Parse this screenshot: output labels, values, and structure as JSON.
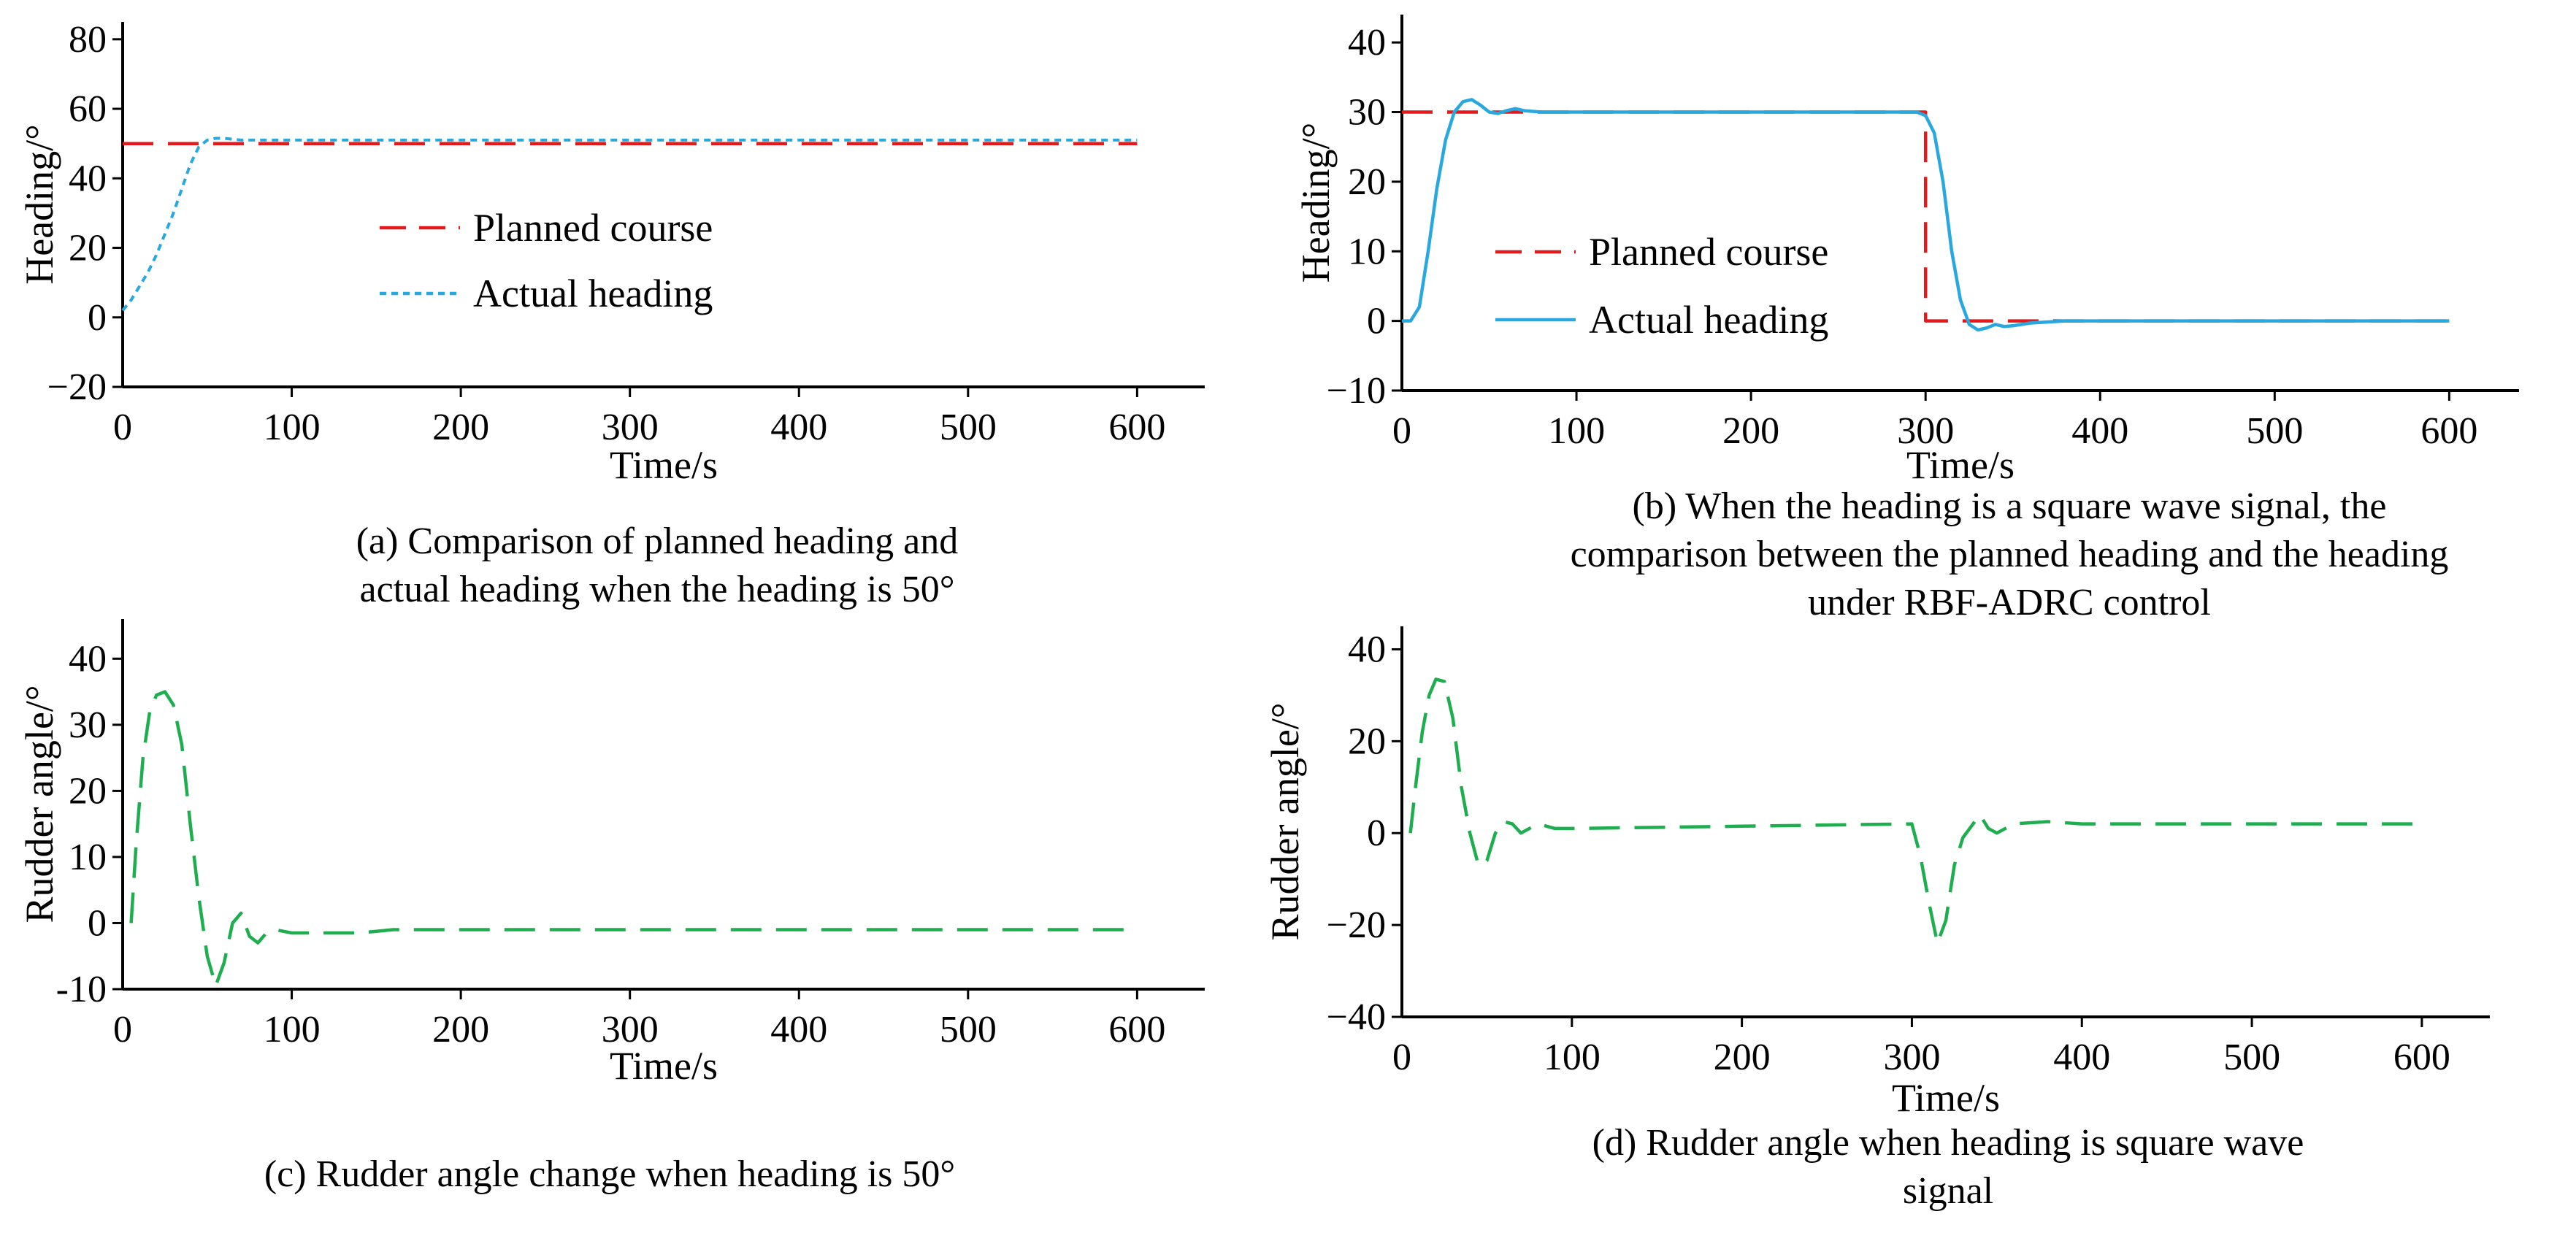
{
  "figure": {
    "panels": [
      {
        "caption_lines": [
          "(a) Comparison of planned heading and",
          "actual heading when the heading is 50°"
        ]
      },
      {
        "caption_lines": [
          "(b) When the heading is a square wave signal, the",
          "comparison between the planned heading and the heading",
          "under RBF-ADRC control"
        ]
      },
      {
        "caption_lines": [
          "(c) Rudder angle change when heading is 50°"
        ]
      },
      {
        "caption_lines": [
          "(d) Rudder angle when heading is square wave",
          "signal"
        ]
      }
    ]
  },
  "colors": {
    "planned": "#e31a1c",
    "actual": "#29a8e0",
    "rudder": "#1fae4f",
    "axis": "#000000"
  },
  "chart_data": [
    {
      "id": "a",
      "type": "line",
      "title": "",
      "xlabel": "Time/s",
      "ylabel": "Heading/°",
      "xlim": [
        0,
        640
      ],
      "ylim": [
        -20,
        85
      ],
      "xticks": [
        0,
        100,
        200,
        300,
        400,
        500,
        600
      ],
      "xtick_labels": [
        "0",
        "100",
        "200",
        "300",
        "400",
        "500",
        "600"
      ],
      "yticks": [
        -20,
        0,
        20,
        40,
        60,
        80
      ],
      "ytick_labels": [
        "−20",
        "0",
        "20",
        "40",
        "60",
        "80"
      ],
      "legend": {
        "position": "center",
        "entries": [
          "Planned course",
          "Actual heading"
        ]
      },
      "series": [
        {
          "name": "Planned course",
          "style": "dashed",
          "color_key": "planned",
          "x": [
            0,
            600
          ],
          "y": [
            50,
            50
          ]
        },
        {
          "name": "Actual heading",
          "style": "dotted",
          "color_key": "actual",
          "x": [
            0,
            5,
            10,
            15,
            20,
            25,
            30,
            35,
            40,
            45,
            50,
            55,
            60,
            70,
            80,
            100,
            200,
            300,
            400,
            500,
            600
          ],
          "y": [
            2,
            5,
            9,
            13,
            18,
            24,
            30,
            37,
            44,
            49,
            51,
            51.5,
            51.5,
            51,
            51,
            51,
            51,
            51,
            51,
            51,
            51
          ]
        }
      ]
    },
    {
      "id": "b",
      "type": "line",
      "title": "",
      "xlabel": "Time/s",
      "ylabel": "Heading/°",
      "xlim": [
        0,
        640
      ],
      "ylim": [
        -10,
        44
      ],
      "xticks": [
        0,
        100,
        200,
        300,
        400,
        500,
        600
      ],
      "xtick_labels": [
        "0",
        "100",
        "200",
        "300",
        "400",
        "500",
        "600"
      ],
      "yticks": [
        -10,
        0,
        10,
        20,
        30,
        40
      ],
      "ytick_labels": [
        "−10",
        "0",
        "10",
        "20",
        "30",
        "40"
      ],
      "legend": {
        "position": "lower-left",
        "entries": [
          "Planned course",
          "Actual heading"
        ]
      },
      "series": [
        {
          "name": "Planned course",
          "style": "dashed",
          "color_key": "planned",
          "x": [
            0,
            300,
            300,
            600
          ],
          "y": [
            30,
            30,
            0,
            0
          ]
        },
        {
          "name": "Actual heading",
          "style": "solid",
          "color_key": "actual",
          "x": [
            0,
            5,
            10,
            15,
            20,
            25,
            30,
            35,
            40,
            45,
            50,
            55,
            60,
            65,
            70,
            80,
            100,
            200,
            295,
            300,
            305,
            310,
            315,
            320,
            325,
            330,
            335,
            340,
            345,
            350,
            360,
            380,
            400,
            500,
            600
          ],
          "y": [
            0,
            0,
            2,
            10,
            19,
            26,
            30,
            31.5,
            31.8,
            31,
            30,
            29.8,
            30.2,
            30.5,
            30.2,
            30,
            30,
            30,
            30,
            29.5,
            27,
            20,
            10,
            3,
            -0.5,
            -1.3,
            -1,
            -0.5,
            -0.8,
            -0.7,
            -0.3,
            0,
            0,
            0,
            0
          ]
        }
      ]
    },
    {
      "id": "c",
      "type": "line",
      "title": "",
      "xlabel": "Time/s",
      "ylabel": "Rudder angle/°",
      "xlim": [
        0,
        640
      ],
      "ylim": [
        -10,
        46
      ],
      "xticks": [
        0,
        100,
        200,
        300,
        400,
        500,
        600
      ],
      "xtick_labels": [
        "0",
        "100",
        "200",
        "300",
        "400",
        "500",
        "600"
      ],
      "yticks": [
        -10,
        0,
        10,
        20,
        30,
        40
      ],
      "ytick_labels": [
        "-10",
        "0",
        "10",
        "20",
        "30",
        "40"
      ],
      "series": [
        {
          "name": "Rudder angle",
          "style": "dashed",
          "color_key": "rudder",
          "x": [
            5,
            8,
            12,
            16,
            20,
            25,
            30,
            35,
            40,
            45,
            50,
            55,
            60,
            65,
            70,
            75,
            80,
            85,
            90,
            100,
            120,
            140,
            160,
            200,
            300,
            400,
            500,
            600
          ],
          "y": [
            0,
            12,
            25,
            32,
            34.5,
            35,
            33,
            27,
            15,
            4,
            -5,
            -9.5,
            -6,
            0,
            1.5,
            -2,
            -3,
            -1.5,
            -1,
            -1.5,
            -1.5,
            -1.5,
            -1,
            -1,
            -1,
            -1,
            -1,
            -1
          ]
        }
      ]
    },
    {
      "id": "d",
      "type": "line",
      "title": "",
      "xlabel": "Time/s",
      "ylabel": "Rudder angle/°",
      "xlim": [
        0,
        640
      ],
      "ylim": [
        -40,
        45
      ],
      "xticks": [
        0,
        100,
        200,
        300,
        400,
        500,
        600
      ],
      "xtick_labels": [
        "0",
        "100",
        "200",
        "300",
        "400",
        "500",
        "600"
      ],
      "yticks": [
        -40,
        -20,
        0,
        20,
        40
      ],
      "ytick_labels": [
        "−40",
        "−20",
        "0",
        "20",
        "40"
      ],
      "series": [
        {
          "name": "Rudder angle",
          "style": "dashed",
          "color_key": "rudder",
          "x": [
            5,
            8,
            12,
            16,
            20,
            25,
            30,
            35,
            40,
            45,
            50,
            55,
            60,
            65,
            70,
            80,
            90,
            100,
            200,
            300,
            305,
            310,
            315,
            320,
            325,
            330,
            335,
            340,
            345,
            350,
            360,
            380,
            400,
            500,
            600
          ],
          "y": [
            0,
            10,
            22,
            30,
            33.5,
            33,
            25,
            10,
            0,
            -7,
            -6,
            0,
            2.5,
            2,
            0,
            2,
            1,
            1,
            1.5,
            2,
            -5,
            -15,
            -24,
            -19,
            -7,
            -1,
            1.5,
            4,
            1,
            0,
            2,
            2.5,
            2,
            2,
            2
          ]
        }
      ]
    }
  ]
}
